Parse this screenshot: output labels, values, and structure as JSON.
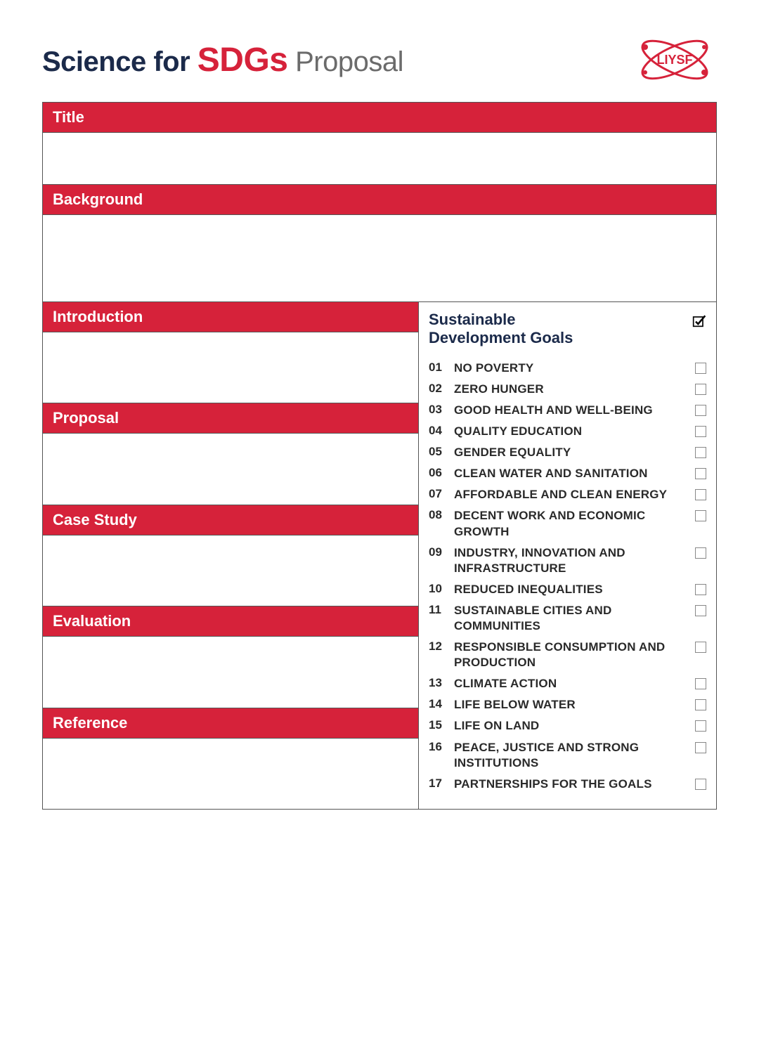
{
  "colors": {
    "brand_red": "#d6223a",
    "dark_navy": "#1b2a4a",
    "gray_text": "#6b6b6b",
    "border": "#555555",
    "checkbox_border": "#888888",
    "white": "#ffffff",
    "body_text": "#2a2a2a"
  },
  "typography": {
    "title_fontsize": 40,
    "title_red_fontsize": 48,
    "section_header_fontsize": 22,
    "sdg_title_fontsize": 22,
    "sdg_item_fontsize": 17
  },
  "header": {
    "part1": "Science for ",
    "part2": "SDGs",
    "part3": " Proposal",
    "logo_text": "LIYSF"
  },
  "sections_full": [
    {
      "label": "Title",
      "body_height": 75
    },
    {
      "label": "Background",
      "body_height": 125
    }
  ],
  "sections_left": [
    {
      "label": "Introduction"
    },
    {
      "label": "Proposal"
    },
    {
      "label": "Case Study"
    },
    {
      "label": "Evaluation"
    },
    {
      "label": "Reference"
    }
  ],
  "sdg": {
    "title": "Sustainable Development Goals",
    "header_checked": true,
    "items": [
      {
        "num": "01",
        "label": "NO POVERTY",
        "checked": false
      },
      {
        "num": "02",
        "label": "ZERO HUNGER",
        "checked": false
      },
      {
        "num": "03",
        "label": "GOOD HEALTH AND WELL-BEING",
        "checked": false
      },
      {
        "num": "04",
        "label": "QUALITY EDUCATION",
        "checked": false
      },
      {
        "num": "05",
        "label": "GENDER EQUALITY",
        "checked": false
      },
      {
        "num": "06",
        "label": "CLEAN WATER AND SANITATION",
        "checked": false
      },
      {
        "num": "07",
        "label": "AFFORDABLE AND CLEAN ENERGY",
        "checked": false
      },
      {
        "num": "08",
        "label": "DECENT WORK AND ECONOMIC GROWTH",
        "checked": false
      },
      {
        "num": "09",
        "label": "INDUSTRY, INNOVATION AND INFRASTRUCTURE",
        "checked": false
      },
      {
        "num": "10",
        "label": "REDUCED INEQUALITIES",
        "checked": false
      },
      {
        "num": "11",
        "label": "SUSTAINABLE CITIES AND COMMUNITIES",
        "checked": false
      },
      {
        "num": "12",
        "label": "RESPONSIBLE CONSUMPTION AND PRODUCTION",
        "checked": false
      },
      {
        "num": "13",
        "label": "CLIMATE ACTION",
        "checked": false
      },
      {
        "num": "14",
        "label": "LIFE BELOW WATER",
        "checked": false
      },
      {
        "num": "15",
        "label": "LIFE ON LAND",
        "checked": false
      },
      {
        "num": "16",
        "label": "PEACE, JUSTICE AND STRONG INSTITUTIONS",
        "checked": false
      },
      {
        "num": "17",
        "label": "PARTNERSHIPS FOR THE GOALS",
        "checked": false
      }
    ]
  }
}
